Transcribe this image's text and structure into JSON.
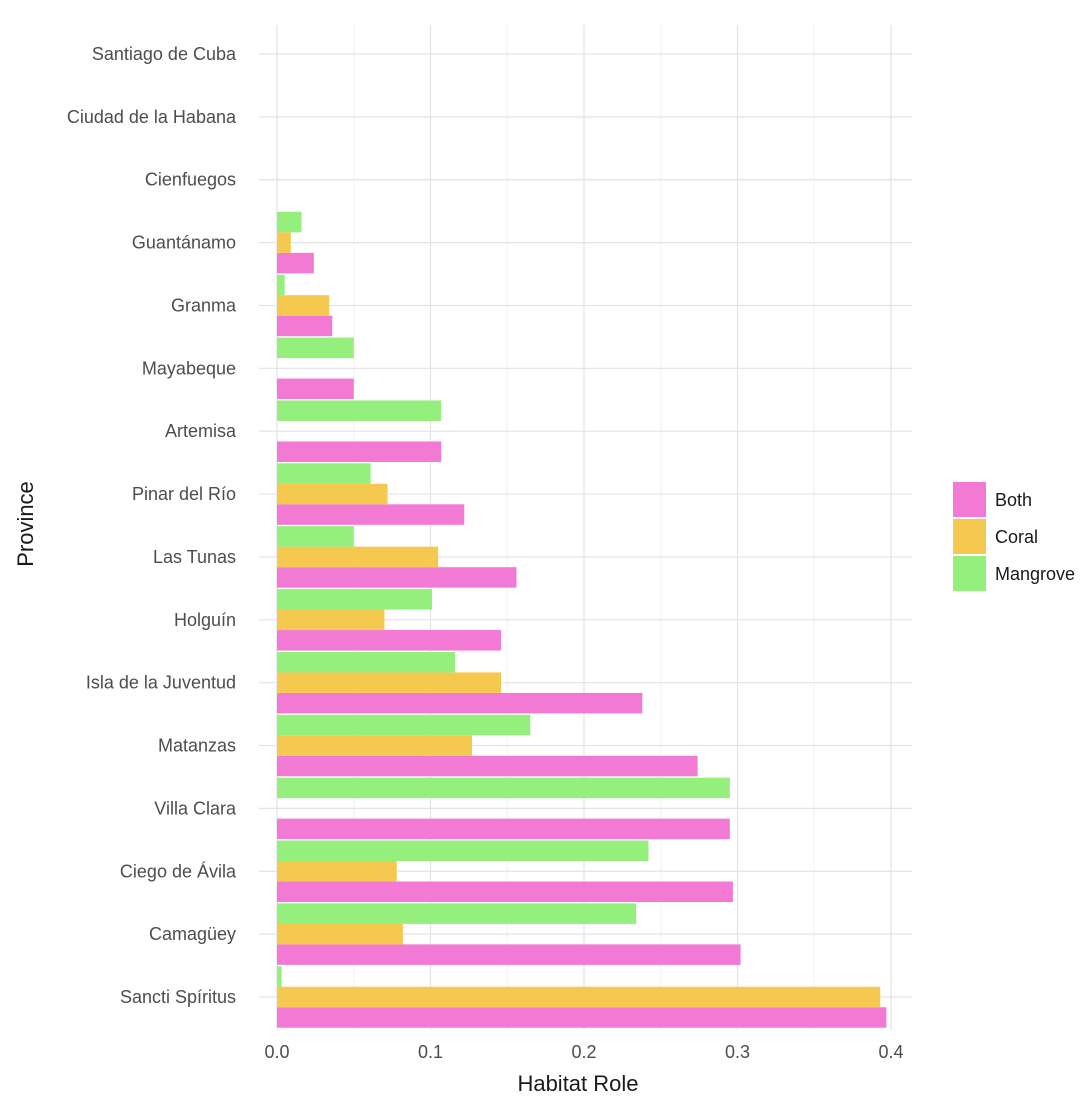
{
  "chart_data": {
    "type": "bar",
    "orientation": "horizontal",
    "xlabel": "Habitat Role",
    "ylabel": "Province",
    "xlim": [
      0,
      0.4
    ],
    "x_ticks": [
      "0.0",
      "0.1",
      "0.2",
      "0.3",
      "0.4"
    ],
    "grid": true,
    "legend_position": "right",
    "categories": [
      "Sancti Spíritus",
      "Camagüey",
      "Ciego de Ávila",
      "Villa Clara",
      "Matanzas",
      "Isla de la Juventud",
      "Holguín",
      "Las Tunas",
      "Pinar del Río",
      "Artemisa",
      "Mayabeque",
      "Granma",
      "Guantánamo",
      "Cienfuegos",
      "Ciudad de la Habana",
      "Santiago de Cuba"
    ],
    "series": [
      {
        "name": "Both",
        "color": "#f27ad4",
        "values": [
          0.397,
          0.302,
          0.297,
          0.295,
          0.274,
          0.238,
          0.146,
          0.156,
          0.122,
          0.107,
          0.05,
          0.036,
          0.024,
          0,
          0,
          0
        ]
      },
      {
        "name": "Coral",
        "color": "#f5c850",
        "values": [
          0.393,
          0.082,
          0.078,
          0,
          0.127,
          0.146,
          0.07,
          0.105,
          0.072,
          0,
          0,
          0.034,
          0.009,
          0,
          0,
          0
        ]
      },
      {
        "name": "Mangrove",
        "color": "#94ef7c",
        "values": [
          0.003,
          0.234,
          0.242,
          0.295,
          0.165,
          0.116,
          0.101,
          0.05,
          0.061,
          0.107,
          0.05,
          0.005,
          0.016,
          0,
          0,
          0
        ]
      }
    ]
  }
}
